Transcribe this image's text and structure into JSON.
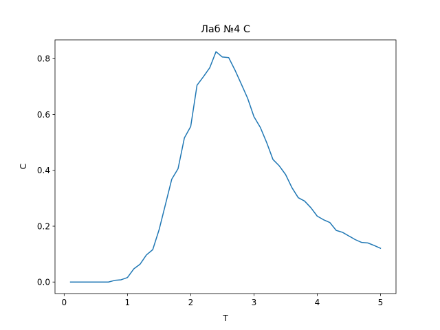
{
  "chart_data": {
    "type": "line",
    "title": "Лаб №4 C",
    "xlabel": "T",
    "ylabel": "C",
    "xlim": [
      -0.145,
      5.245
    ],
    "ylim": [
      -0.0413,
      0.8673
    ],
    "xticks": [
      0,
      1,
      2,
      3,
      4,
      5
    ],
    "xtick_labels": [
      "0",
      "1",
      "2",
      "3",
      "4",
      "5"
    ],
    "yticks": [
      0.0,
      0.2,
      0.4,
      0.6,
      0.8
    ],
    "ytick_labels": [
      "0.0",
      "0.2",
      "0.4",
      "0.6",
      "0.8"
    ],
    "grid": false,
    "legend": "none",
    "colors": {
      "series": "#1f77b4",
      "frame": "#000000",
      "background": "#ffffff"
    },
    "series": [
      {
        "x": [
          0.1,
          0.2,
          0.3,
          0.4,
          0.5,
          0.6,
          0.7,
          0.8,
          0.9,
          1.0,
          1.1,
          1.2,
          1.3,
          1.4,
          1.5,
          1.6,
          1.7,
          1.8,
          1.9,
          2.0,
          2.1,
          2.2,
          2.3,
          2.4,
          2.5,
          2.6,
          2.7,
          2.8,
          2.9,
          3.0,
          3.1,
          3.2,
          3.3,
          3.4,
          3.5,
          3.6,
          3.7,
          3.8,
          3.9,
          4.0,
          4.1,
          4.2,
          4.3,
          4.4,
          4.5,
          4.6,
          4.7,
          4.8,
          4.9,
          5.0
        ],
        "values": [
          0.0,
          0.0,
          0.0,
          0.0,
          0.0,
          0.0,
          0.0,
          0.006,
          0.008,
          0.016,
          0.047,
          0.064,
          0.097,
          0.116,
          0.187,
          0.277,
          0.368,
          0.406,
          0.516,
          0.557,
          0.705,
          0.735,
          0.767,
          0.825,
          0.806,
          0.804,
          0.759,
          0.709,
          0.658,
          0.592,
          0.554,
          0.5,
          0.439,
          0.416,
          0.385,
          0.338,
          0.302,
          0.29,
          0.266,
          0.236,
          0.223,
          0.213,
          0.185,
          0.178,
          0.165,
          0.152,
          0.142,
          0.14,
          0.131,
          0.121
        ]
      }
    ]
  }
}
